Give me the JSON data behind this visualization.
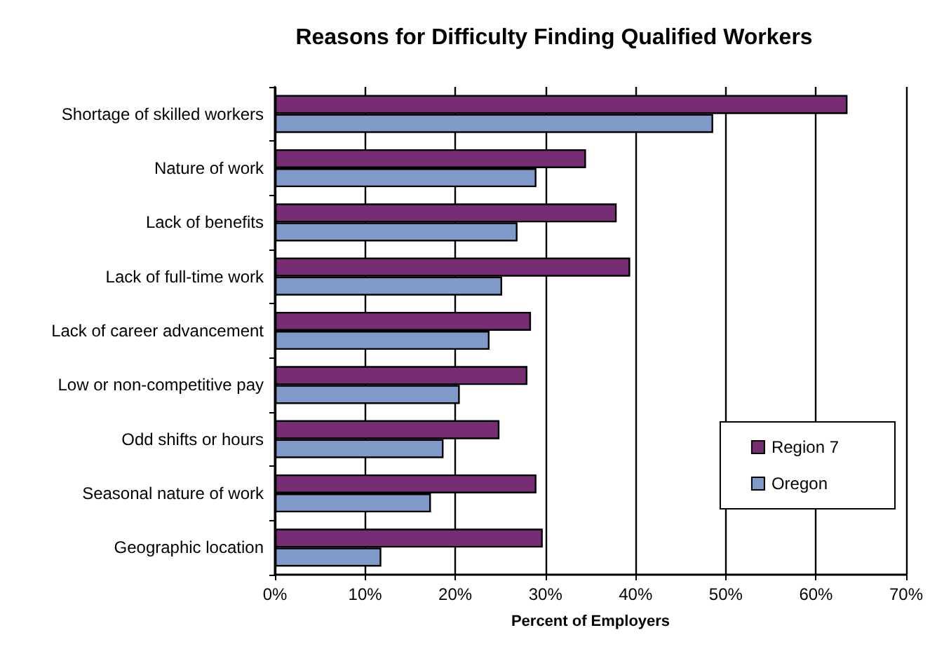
{
  "chart_data": {
    "type": "bar",
    "orientation": "horizontal",
    "title": "Reasons for Difficulty Finding Qualified Workers",
    "xlabel": "Percent of Employers",
    "categories": [
      "Shortage of skilled workers",
      "Nature of work",
      "Lack of benefits",
      "Lack of full-time work",
      "Lack of career advancement",
      "Low or non-competitive pay",
      "Odd shifts or hours",
      "Seasonal nature of work",
      "Geographic location"
    ],
    "series": [
      {
        "name": "Region 7",
        "color": "#772d73",
        "values": [
          63.5,
          34.5,
          37.9,
          39.4,
          28.4,
          28.0,
          24.9,
          29.0,
          29.7
        ]
      },
      {
        "name": "Oregon",
        "color": "#7f9ac8",
        "values": [
          48.6,
          29.0,
          26.9,
          25.2,
          23.8,
          20.5,
          18.7,
          17.3,
          11.8
        ]
      }
    ],
    "xlim": [
      0,
      70
    ],
    "xticks": [
      {
        "value": 0,
        "label": "0%"
      },
      {
        "value": 10,
        "label": "10%"
      },
      {
        "value": 20,
        "label": "20%"
      },
      {
        "value": 30,
        "label": "30%"
      },
      {
        "value": 40,
        "label": "40%"
      },
      {
        "value": 50,
        "label": "50%"
      },
      {
        "value": 60,
        "label": "60%"
      },
      {
        "value": 70,
        "label": "70%"
      }
    ],
    "grid": "x",
    "legend": "bottom right"
  }
}
